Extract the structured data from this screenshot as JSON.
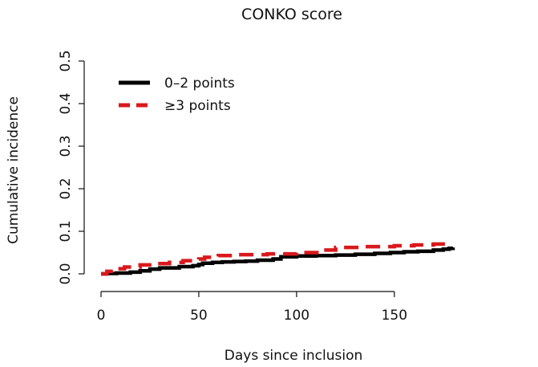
{
  "chart_data": {
    "type": "line",
    "title": "CONKO score",
    "xlabel": "Days since inclusion",
    "ylabel": "Cumulative incidence",
    "xlim": [
      0,
      180
    ],
    "ylim": [
      0,
      0.5
    ],
    "x_ticks": [
      0,
      50,
      100,
      150
    ],
    "y_ticks": [
      0.0,
      0.1,
      0.2,
      0.3,
      0.4,
      0.5
    ],
    "x_tick_labels": [
      "0",
      "50",
      "100",
      "150"
    ],
    "y_tick_labels": [
      "0.0",
      "0.1",
      "0.2",
      "0.3",
      "0.4",
      "0.5"
    ],
    "grid": false,
    "legend_position": "top-left",
    "series": [
      {
        "name": "0–2 points",
        "color": "#000000",
        "dash": "solid",
        "step": true,
        "x": [
          0,
          3,
          8,
          15,
          20,
          25,
          30,
          40,
          47,
          50,
          52,
          57,
          62,
          68,
          74,
          80,
          88,
          92,
          100,
          110,
          120,
          130,
          140,
          148,
          155,
          162,
          170,
          175,
          178,
          180
        ],
        "y": [
          0,
          0.001,
          0.002,
          0.004,
          0.007,
          0.011,
          0.014,
          0.017,
          0.019,
          0.022,
          0.025,
          0.027,
          0.028,
          0.029,
          0.03,
          0.032,
          0.035,
          0.04,
          0.042,
          0.043,
          0.044,
          0.046,
          0.048,
          0.05,
          0.052,
          0.053,
          0.056,
          0.058,
          0.06,
          0.062
        ]
      },
      {
        "name": "≥3 points",
        "color": "#d9191c",
        "dash": "dashed",
        "step": true,
        "x": [
          0,
          3,
          8,
          12,
          20,
          28,
          35,
          42,
          50,
          53,
          60,
          70,
          85,
          100,
          112,
          120,
          135,
          150,
          160,
          170,
          178
        ],
        "y": [
          0,
          0.006,
          0.012,
          0.016,
          0.021,
          0.024,
          0.027,
          0.031,
          0.035,
          0.039,
          0.043,
          0.045,
          0.047,
          0.05,
          0.056,
          0.062,
          0.064,
          0.066,
          0.068,
          0.07,
          0.07
        ]
      }
    ]
  }
}
